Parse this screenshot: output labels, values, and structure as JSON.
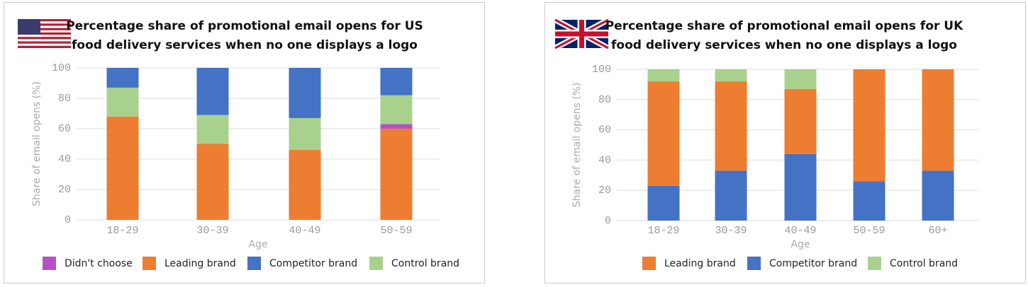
{
  "chart_data": [
    {
      "type": "bar",
      "stacked": true,
      "title": [
        "Percentage share of promotional email opens for US",
        "food delivery services when no one displays a logo"
      ],
      "x_label": "Age",
      "y_label": "Share of email opens (%)",
      "categories": [
        "18-29",
        "30-39",
        "40-49",
        "50-59"
      ],
      "series": [
        {
          "name": "Didn't choose",
          "color": "#b452c4",
          "values": [
            0,
            0,
            0,
            3
          ]
        },
        {
          "name": "Leading brand",
          "color": "#ed7d31",
          "values": [
            68,
            50,
            46,
            60
          ]
        },
        {
          "name": "Competitor brand",
          "color": "#4472c4",
          "values": [
            13,
            31,
            33,
            18
          ]
        },
        {
          "name": "Control brand",
          "color": "#a9d18e",
          "values": [
            19,
            19,
            21,
            19
          ]
        }
      ],
      "ylim": [
        0,
        100
      ],
      "yticks": [
        0,
        20,
        40,
        60,
        80,
        100
      ],
      "grid": true
    },
    {
      "type": "bar",
      "stacked": true,
      "title": [
        "Percentage share of promotional email opens for UK",
        "food delivery services when no one displays a logo"
      ],
      "x_label": "Age",
      "y_label": "Share of email opens (%)",
      "categories": [
        "18-29",
        "30-39",
        "40-49",
        "50-59",
        "60+"
      ],
      "series": [
        {
          "name": "Leading brand",
          "color": "#ed7d31",
          "values": [
            69,
            59,
            43,
            74,
            67
          ]
        },
        {
          "name": "Competitor brand",
          "color": "#4472c4",
          "values": [
            23,
            33,
            44,
            26,
            33
          ]
        },
        {
          "name": "Control brand",
          "color": "#a9d18e",
          "values": [
            8,
            8,
            13,
            0,
            0
          ]
        }
      ],
      "ylim": [
        0,
        100
      ],
      "yticks": [
        0,
        20,
        40,
        60,
        80,
        100
      ],
      "grid": true
    }
  ]
}
